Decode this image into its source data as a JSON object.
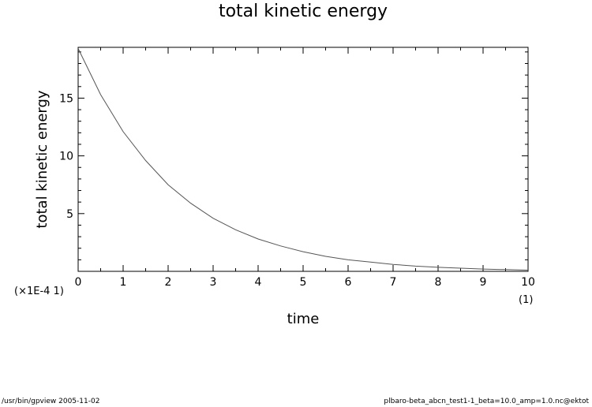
{
  "chart_data": {
    "type": "line",
    "title": "total kinetic energy",
    "xlabel": "time",
    "ylabel": "total kinetic energy",
    "x_multiplier": "(1)",
    "y_multiplier": "(×1E-4 1)",
    "xlim": [
      0,
      10
    ],
    "ylim": [
      0,
      19.4
    ],
    "xticks": [
      0,
      1,
      2,
      3,
      4,
      5,
      6,
      7,
      8,
      9,
      10
    ],
    "yticks": [
      5,
      10,
      15
    ],
    "grid": false,
    "series": [
      {
        "color": "#555555",
        "x": [
          0,
          0.5,
          1,
          1.5,
          2,
          2.5,
          3,
          3.5,
          4,
          4.5,
          5,
          5.5,
          6,
          6.5,
          7,
          7.5,
          8,
          8.5,
          9,
          9.5,
          10
        ],
        "y": [
          19.3,
          15.3,
          12.1,
          9.6,
          7.5,
          5.9,
          4.6,
          3.6,
          2.8,
          2.2,
          1.7,
          1.3,
          1.0,
          0.8,
          0.6,
          0.45,
          0.35,
          0.27,
          0.2,
          0.15,
          0.1
        ]
      }
    ]
  },
  "footer": {
    "left": "/usr/bin/gpview   2005-11-02",
    "right": "plbaro-beta_abcn_test1-1_beta=10.0_amp=1.0.nc@ektot"
  }
}
